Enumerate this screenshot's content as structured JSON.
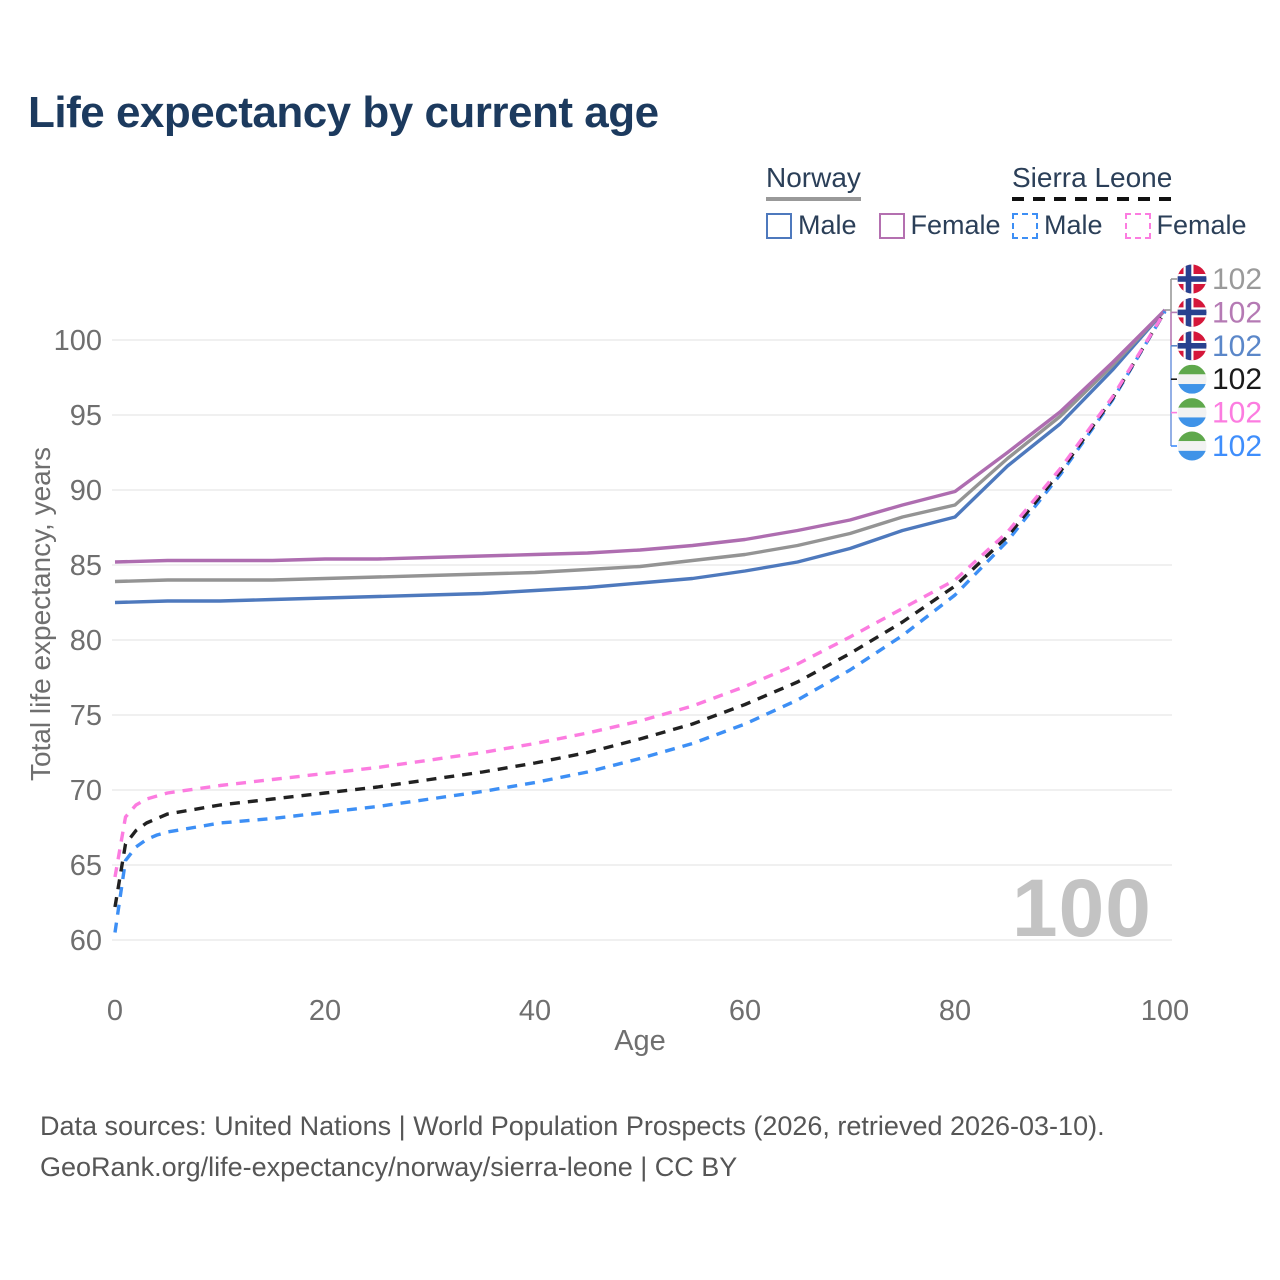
{
  "title": "Life expectancy by current age",
  "watermark_age": "100",
  "legend": {
    "groups": [
      {
        "country": "Norway",
        "line_style": "solid",
        "underline_color": "#999999",
        "items": [
          {
            "label": "Male",
            "color": "#4e79bd",
            "dashed": false
          },
          {
            "label": "Female",
            "color": "#b470b0",
            "dashed": false
          }
        ]
      },
      {
        "country": "Sierra Leone",
        "line_style": "dashed",
        "underline_color": "#111111",
        "items": [
          {
            "label": "Male",
            "color": "#3d8ff5",
            "dashed": true
          },
          {
            "label": "Female",
            "color": "#fc7ce0",
            "dashed": true
          }
        ]
      }
    ]
  },
  "chart_data": {
    "type": "line",
    "title": "Life expectancy by current age",
    "xlabel": "Age",
    "ylabel": "Total life expectancy, years",
    "xlim": [
      0,
      100
    ],
    "ylim": [
      60,
      103
    ],
    "xticks": [
      0,
      20,
      40,
      60,
      80,
      100
    ],
    "yticks": [
      60,
      65,
      70,
      75,
      80,
      85,
      90,
      95,
      100
    ],
    "grid": "horizontal",
    "gridline_color": "#ebebeb",
    "tick_color": "#6f6f6f",
    "series": [
      {
        "name": "Norway Both sexes",
        "country": "norway",
        "sex": "both",
        "color": "#949494",
        "dashed": false,
        "end_label": "102",
        "label_color": "#9a9a9a",
        "points": [
          [
            0,
            83.9
          ],
          [
            5,
            84.0
          ],
          [
            10,
            84.0
          ],
          [
            15,
            84.0
          ],
          [
            20,
            84.1
          ],
          [
            25,
            84.2
          ],
          [
            30,
            84.3
          ],
          [
            35,
            84.4
          ],
          [
            40,
            84.5
          ],
          [
            45,
            84.7
          ],
          [
            50,
            84.9
          ],
          [
            55,
            85.3
          ],
          [
            60,
            85.7
          ],
          [
            65,
            86.3
          ],
          [
            70,
            87.1
          ],
          [
            75,
            88.2
          ],
          [
            80,
            89.0
          ],
          [
            85,
            92.1
          ],
          [
            90,
            94.9
          ],
          [
            95,
            98.3
          ],
          [
            100,
            102.0
          ]
        ]
      },
      {
        "name": "Norway Female",
        "country": "norway",
        "sex": "female",
        "color": "#ae6db0",
        "dashed": false,
        "end_label": "102",
        "label_color": "#b57ab4",
        "points": [
          [
            0,
            85.2
          ],
          [
            5,
            85.3
          ],
          [
            10,
            85.3
          ],
          [
            15,
            85.3
          ],
          [
            20,
            85.4
          ],
          [
            25,
            85.4
          ],
          [
            30,
            85.5
          ],
          [
            35,
            85.6
          ],
          [
            40,
            85.7
          ],
          [
            45,
            85.8
          ],
          [
            50,
            86.0
          ],
          [
            55,
            86.3
          ],
          [
            60,
            86.7
          ],
          [
            65,
            87.3
          ],
          [
            70,
            88.0
          ],
          [
            75,
            89.0
          ],
          [
            80,
            89.9
          ],
          [
            85,
            92.5
          ],
          [
            90,
            95.2
          ],
          [
            95,
            98.5
          ],
          [
            100,
            102.0
          ]
        ]
      },
      {
        "name": "Norway Male",
        "country": "norway",
        "sex": "male",
        "color": "#4e79bd",
        "dashed": false,
        "end_label": "102",
        "label_color": "#5b87c9",
        "points": [
          [
            0,
            82.5
          ],
          [
            5,
            82.6
          ],
          [
            10,
            82.6
          ],
          [
            15,
            82.7
          ],
          [
            20,
            82.8
          ],
          [
            25,
            82.9
          ],
          [
            30,
            83.0
          ],
          [
            35,
            83.1
          ],
          [
            40,
            83.3
          ],
          [
            45,
            83.5
          ],
          [
            50,
            83.8
          ],
          [
            55,
            84.1
          ],
          [
            60,
            84.6
          ],
          [
            65,
            85.2
          ],
          [
            70,
            86.1
          ],
          [
            75,
            87.3
          ],
          [
            80,
            88.2
          ],
          [
            85,
            91.6
          ],
          [
            90,
            94.4
          ],
          [
            95,
            98.0
          ],
          [
            100,
            102.0
          ]
        ]
      },
      {
        "name": "Sierra Leone Both sexes",
        "country": "sierra-leone",
        "sex": "both",
        "color": "#212121",
        "dashed": true,
        "end_label": "102",
        "label_color": "#1a1a1a",
        "points": [
          [
            0,
            62.2
          ],
          [
            1,
            66.4
          ],
          [
            2,
            67.3
          ],
          [
            3,
            67.8
          ],
          [
            4,
            68.1
          ],
          [
            5,
            68.4
          ],
          [
            10,
            69.0
          ],
          [
            15,
            69.4
          ],
          [
            20,
            69.8
          ],
          [
            25,
            70.2
          ],
          [
            30,
            70.7
          ],
          [
            35,
            71.2
          ],
          [
            40,
            71.8
          ],
          [
            45,
            72.5
          ],
          [
            50,
            73.4
          ],
          [
            55,
            74.4
          ],
          [
            60,
            75.7
          ],
          [
            65,
            77.2
          ],
          [
            70,
            79.1
          ],
          [
            75,
            81.2
          ],
          [
            80,
            83.6
          ],
          [
            85,
            86.9
          ],
          [
            90,
            91.2
          ],
          [
            95,
            96.1
          ],
          [
            100,
            101.9
          ]
        ]
      },
      {
        "name": "Sierra Leone Female",
        "country": "sierra-leone",
        "sex": "female",
        "color": "#fc7ce0",
        "dashed": true,
        "end_label": "102",
        "label_color": "#fc7ce0",
        "points": [
          [
            0,
            64.2
          ],
          [
            1,
            68.2
          ],
          [
            2,
            69.0
          ],
          [
            3,
            69.4
          ],
          [
            4,
            69.6
          ],
          [
            5,
            69.8
          ],
          [
            10,
            70.3
          ],
          [
            15,
            70.7
          ],
          [
            20,
            71.1
          ],
          [
            25,
            71.5
          ],
          [
            30,
            72.0
          ],
          [
            35,
            72.5
          ],
          [
            40,
            73.1
          ],
          [
            45,
            73.8
          ],
          [
            50,
            74.6
          ],
          [
            55,
            75.6
          ],
          [
            60,
            76.9
          ],
          [
            65,
            78.4
          ],
          [
            70,
            80.2
          ],
          [
            75,
            82.1
          ],
          [
            80,
            84.0
          ],
          [
            85,
            87.2
          ],
          [
            90,
            91.4
          ],
          [
            95,
            96.2
          ],
          [
            100,
            101.9
          ]
        ]
      },
      {
        "name": "Sierra Leone Male",
        "country": "sierra-leone",
        "sex": "male",
        "color": "#3d8ff5",
        "dashed": true,
        "end_label": "102",
        "label_color": "#3f8efc",
        "points": [
          [
            0,
            60.5
          ],
          [
            1,
            65.3
          ],
          [
            2,
            66.2
          ],
          [
            3,
            66.7
          ],
          [
            4,
            67.0
          ],
          [
            5,
            67.2
          ],
          [
            10,
            67.8
          ],
          [
            15,
            68.1
          ],
          [
            20,
            68.5
          ],
          [
            25,
            68.9
          ],
          [
            30,
            69.4
          ],
          [
            35,
            69.9
          ],
          [
            40,
            70.5
          ],
          [
            45,
            71.2
          ],
          [
            50,
            72.1
          ],
          [
            55,
            73.1
          ],
          [
            60,
            74.4
          ],
          [
            65,
            76.0
          ],
          [
            70,
            78.0
          ],
          [
            75,
            80.3
          ],
          [
            80,
            83.0
          ],
          [
            85,
            86.6
          ],
          [
            90,
            91.0
          ],
          [
            95,
            96.0
          ],
          [
            100,
            101.9
          ]
        ]
      }
    ]
  },
  "flag_colors": {
    "norway": {
      "red": "#d5173a",
      "blue": "#28418f",
      "white": "#ffffff"
    },
    "sierra_leone": {
      "green": "#5fa84c",
      "white": "#f2f2f2",
      "blue": "#3f93e8"
    }
  },
  "footer": {
    "line1": "Data sources: United Nations | World Population Prospects (2026, retrieved 2026-03-10).",
    "line2": "GeoRank.org/life-expectancy/norway/sierra-leone | CC BY"
  }
}
